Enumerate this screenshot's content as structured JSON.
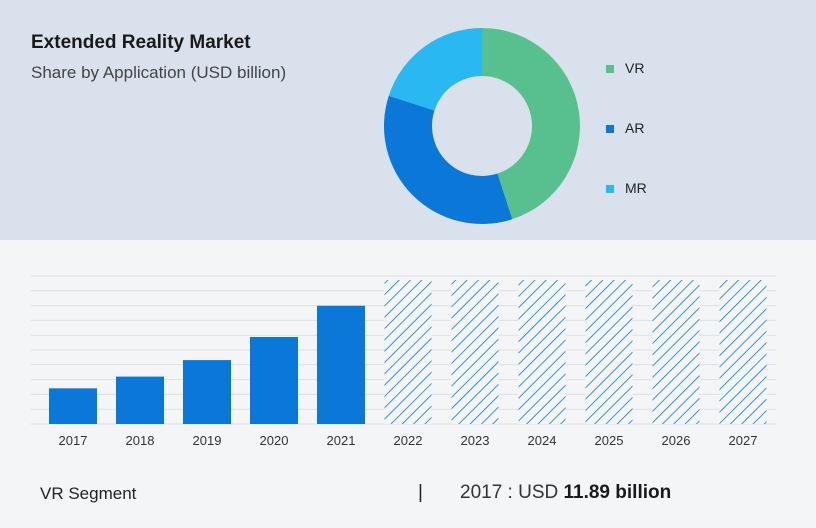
{
  "header": {
    "title": "Extended Reality Market",
    "subtitle": "Share by Application (USD billion)"
  },
  "legend": [
    {
      "label": "VR",
      "color": "#58c08f"
    },
    {
      "label": "AR",
      "color": "#0b77d8"
    },
    {
      "label": "MR",
      "color": "#2ab8f2"
    }
  ],
  "footer": {
    "segment": "VR Segment",
    "separator": "|",
    "year_prefix": "2017 : USD ",
    "value": "11.89 billion"
  },
  "chart_data": [
    {
      "type": "pie",
      "title": "Share by Application (USD billion)",
      "labels": [
        "VR",
        "AR",
        "MR"
      ],
      "values": [
        45,
        35,
        20
      ],
      "colors": [
        "#58c08f",
        "#0b77d8",
        "#2ab8f2"
      ],
      "donut": true,
      "legend": "right"
    },
    {
      "type": "bar",
      "categories": [
        "2017",
        "2018",
        "2019",
        "2020",
        "2021",
        "2022",
        "2023",
        "2024",
        "2025",
        "2026",
        "2027"
      ],
      "values": [
        11.89,
        15.8,
        21.3,
        29.0,
        39.4,
        null,
        null,
        null,
        null,
        null,
        null
      ],
      "forecast_years": [
        "2022",
        "2023",
        "2024",
        "2025",
        "2026",
        "2027"
      ],
      "ylim": [
        0,
        48
      ],
      "grid": true,
      "color": "#0b77d8"
    }
  ]
}
